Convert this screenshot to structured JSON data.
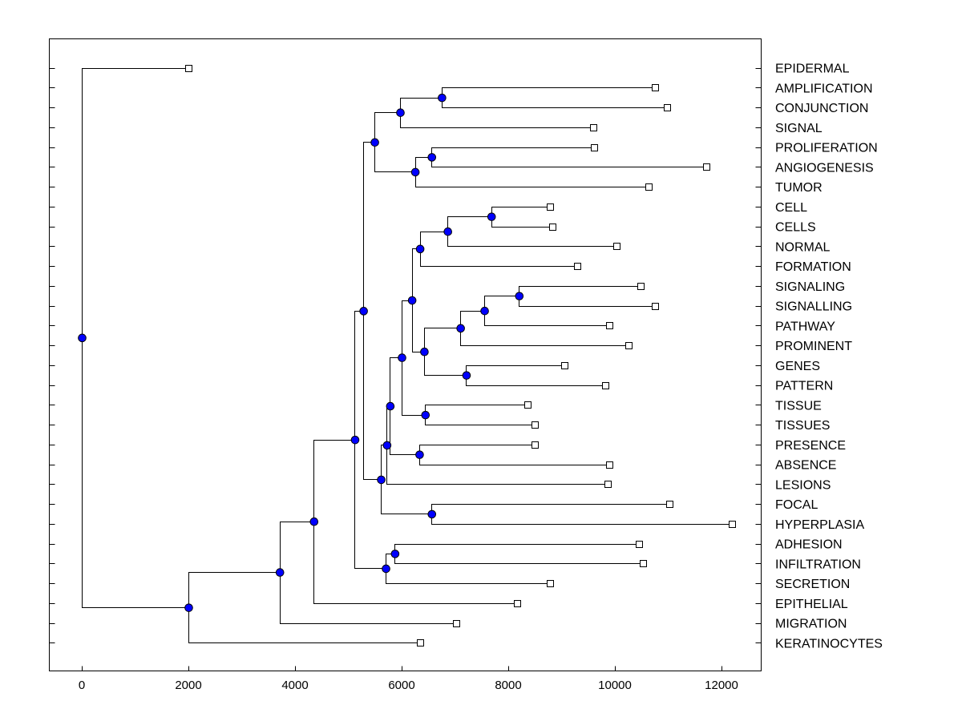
{
  "chart_data": {
    "type": "dendrogram",
    "title": "",
    "xlabel": "",
    "ylabel": "",
    "xlim": [
      -600,
      12700
    ],
    "xticks": [
      0,
      2000,
      4000,
      6000,
      8000,
      10000,
      12000
    ],
    "xtick_labels": [
      "0",
      "2000",
      "4000",
      "6000",
      "8000",
      "10000",
      "12000"
    ],
    "leaves": [
      {
        "label": "EPIDERMAL",
        "x": 2000
      },
      {
        "label": "AMPLIFICATION",
        "x": 10750
      },
      {
        "label": "CONJUNCTION",
        "x": 10980
      },
      {
        "label": "SIGNAL",
        "x": 9600
      },
      {
        "label": "PROLIFERATION",
        "x": 9610
      },
      {
        "label": "ANGIOGENESIS",
        "x": 11720
      },
      {
        "label": "TUMOR",
        "x": 10630
      },
      {
        "label": "CELL",
        "x": 8780
      },
      {
        "label": "CELLS",
        "x": 8820
      },
      {
        "label": "NORMAL",
        "x": 10030
      },
      {
        "label": "FORMATION",
        "x": 9290
      },
      {
        "label": "SIGNALING",
        "x": 10480
      },
      {
        "label": "SIGNALLING",
        "x": 10750
      },
      {
        "label": "PATHWAY",
        "x": 9890
      },
      {
        "label": "PROMINENT",
        "x": 10250
      },
      {
        "label": "GENES",
        "x": 9060
      },
      {
        "label": "PATTERN",
        "x": 9820
      },
      {
        "label": "TISSUE",
        "x": 8360
      },
      {
        "label": "TISSUES",
        "x": 8490
      },
      {
        "label": "PRESENCE",
        "x": 8490
      },
      {
        "label": "ABSENCE",
        "x": 9900
      },
      {
        "label": "LESIONS",
        "x": 9870
      },
      {
        "label": "FOCAL",
        "x": 11030
      },
      {
        "label": "HYPERPLASIA",
        "x": 12200
      },
      {
        "label": "ADHESION",
        "x": 10450
      },
      {
        "label": "INFILTRATION",
        "x": 10520
      },
      {
        "label": "SECRETION",
        "x": 8780
      },
      {
        "label": "EPITHELIAL",
        "x": 8170
      },
      {
        "label": "MIGRATION",
        "x": 7020
      },
      {
        "label": "KERATINOCYTES",
        "x": 6350
      }
    ],
    "merges": [
      {
        "x": 6750,
        "a": "L1",
        "b": "L2"
      },
      {
        "x": 5970,
        "a": "N0",
        "b": "L3"
      },
      {
        "x": 6560,
        "a": "L4",
        "b": "L5"
      },
      {
        "x": 6250,
        "a": "N2",
        "b": "L6"
      },
      {
        "x": 5490,
        "a": "N1",
        "b": "N3"
      },
      {
        "x": 7680,
        "a": "L7",
        "b": "L8"
      },
      {
        "x": 6860,
        "a": "N5",
        "b": "L9"
      },
      {
        "x": 6340,
        "a": "N6",
        "b": "L10"
      },
      {
        "x": 8200,
        "a": "L11",
        "b": "L12"
      },
      {
        "x": 7550,
        "a": "N8",
        "b": "L13"
      },
      {
        "x": 7100,
        "a": "N9",
        "b": "L14"
      },
      {
        "x": 7210,
        "a": "L15",
        "b": "L16"
      },
      {
        "x": 6420,
        "a": "N10",
        "b": "N11"
      },
      {
        "x": 6190,
        "a": "N7",
        "b": "N12"
      },
      {
        "x": 6440,
        "a": "L17",
        "b": "L18"
      },
      {
        "x": 6000,
        "a": "N13",
        "b": "N14"
      },
      {
        "x": 6330,
        "a": "L19",
        "b": "L20"
      },
      {
        "x": 5780,
        "a": "N15",
        "b": "N16"
      },
      {
        "x": 5720,
        "a": "N17",
        "b": "L21"
      },
      {
        "x": 6560,
        "a": "L22",
        "b": "L23"
      },
      {
        "x": 5610,
        "a": "N18",
        "b": "N19"
      },
      {
        "x": 5280,
        "a": "N4",
        "b": "N20"
      },
      {
        "x": 5870,
        "a": "L24",
        "b": "L25"
      },
      {
        "x": 5700,
        "a": "N22",
        "b": "L26"
      },
      {
        "x": 5120,
        "a": "N21",
        "b": "N23"
      },
      {
        "x": 4350,
        "a": "N24",
        "b": "L27"
      },
      {
        "x": 3710,
        "a": "N25",
        "b": "L28"
      },
      {
        "x": 2000,
        "a": "N26",
        "b": "L29"
      },
      {
        "x": 0,
        "a": "L0",
        "b": "N27"
      }
    ],
    "colors": {
      "node": "#0000ff",
      "line": "#000000",
      "leaf_fill": "#ffffff"
    }
  }
}
